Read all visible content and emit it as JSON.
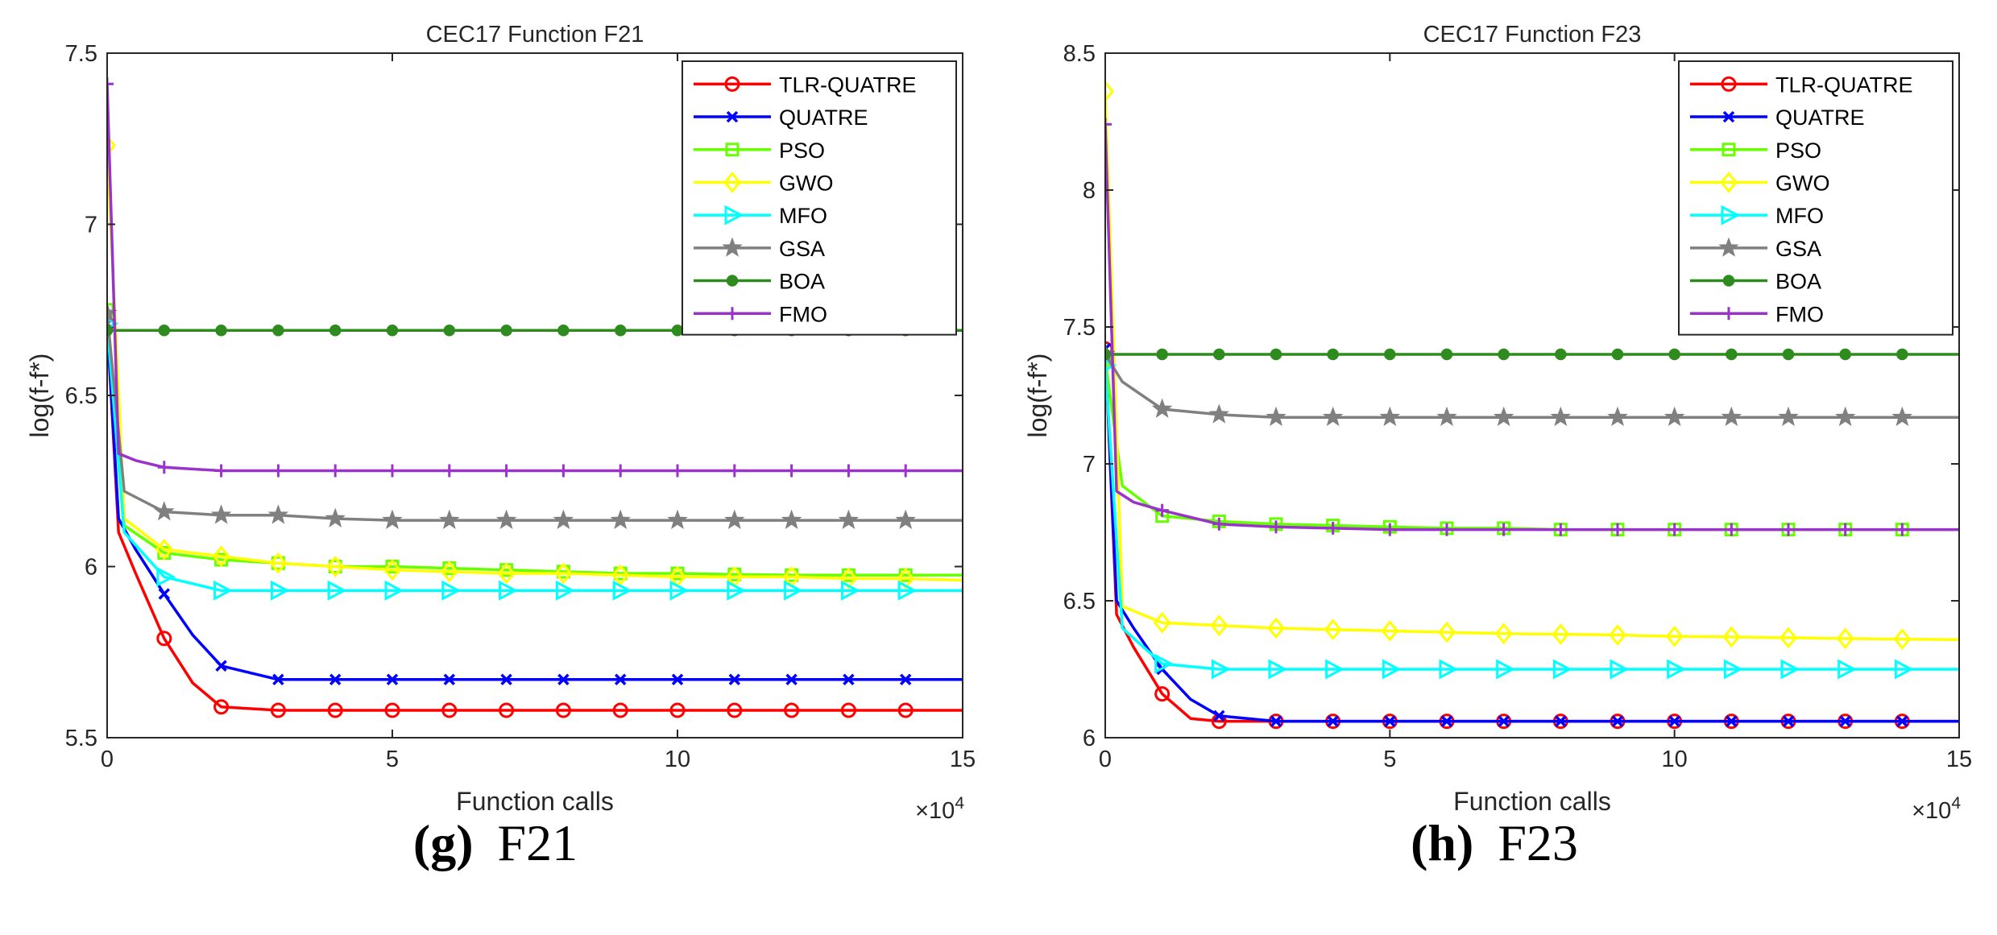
{
  "figures": [
    {
      "caption_letter": "(g)",
      "caption_text": "F21"
    },
    {
      "caption_letter": "(h)",
      "caption_text": "F23"
    }
  ],
  "chart_data": [
    {
      "type": "line",
      "title": "CEC17 Function F21",
      "xlabel": "Function calls",
      "ylabel": "log(f-f*)",
      "x_multiplier_label": "×10",
      "x_multiplier_exp": "4",
      "xlim": [
        0,
        15
      ],
      "ylim": [
        5.5,
        7.5
      ],
      "xticks": [
        0,
        5,
        10,
        15
      ],
      "xtick_labels": [
        "0",
        "5",
        "10",
        "15"
      ],
      "yticks": [
        5.5,
        6,
        6.5,
        7,
        7.5
      ],
      "ytick_labels": [
        "5.5",
        "6",
        "6.5",
        "7",
        "7.5"
      ],
      "legend_position": "top-right",
      "series": [
        {
          "name": "TLR-QUATRE",
          "color": "#ff0000",
          "marker": "circle",
          "x": [
            0,
            0.2,
            0.5,
            1,
            1.5,
            2,
            3,
            4,
            5,
            6,
            7,
            8,
            9,
            10,
            11,
            12,
            13,
            14,
            15
          ],
          "y": [
            6.71,
            6.1,
            5.98,
            5.79,
            5.66,
            5.59,
            5.58,
            5.58,
            5.58,
            5.58,
            5.58,
            5.58,
            5.58,
            5.58,
            5.58,
            5.58,
            5.58,
            5.58,
            5.58
          ]
        },
        {
          "name": "QUATRE",
          "color": "#0000ff",
          "marker": "x",
          "x": [
            0,
            0.2,
            0.5,
            1,
            1.5,
            2,
            3,
            4,
            5,
            6,
            7,
            8,
            9,
            10,
            11,
            12,
            13,
            14,
            15
          ],
          "y": [
            6.71,
            6.14,
            6.05,
            5.92,
            5.8,
            5.71,
            5.67,
            5.67,
            5.67,
            5.67,
            5.67,
            5.67,
            5.67,
            5.67,
            5.67,
            5.67,
            5.67,
            5.67,
            5.67
          ]
        },
        {
          "name": "PSO",
          "color": "#66ff00",
          "marker": "square",
          "x": [
            0,
            0.3,
            1,
            2,
            3,
            4,
            5,
            6,
            7,
            8,
            9,
            10,
            11,
            12,
            13,
            14,
            15
          ],
          "y": [
            6.75,
            6.12,
            6.04,
            6.02,
            6.01,
            6.0,
            6.0,
            5.995,
            5.99,
            5.985,
            5.98,
            5.98,
            5.977,
            5.975,
            5.975,
            5.975,
            5.975
          ]
        },
        {
          "name": "GWO",
          "color": "#ffff00",
          "marker": "diamond",
          "x": [
            0,
            0.3,
            1,
            2,
            3,
            4,
            5,
            6,
            7,
            8,
            9,
            10,
            11,
            12,
            13,
            14,
            15
          ],
          "y": [
            7.23,
            6.14,
            6.05,
            6.03,
            6.01,
            6.0,
            5.99,
            5.985,
            5.98,
            5.98,
            5.975,
            5.97,
            5.97,
            5.97,
            5.965,
            5.965,
            5.96
          ]
        },
        {
          "name": "MFO",
          "color": "#00ffff",
          "marker": "triangle-right",
          "x": [
            0,
            0.3,
            1,
            2,
            3,
            4,
            5,
            6,
            7,
            8,
            9,
            10,
            11,
            12,
            13,
            14,
            15
          ],
          "y": [
            6.71,
            6.1,
            5.97,
            5.93,
            5.93,
            5.93,
            5.93,
            5.93,
            5.93,
            5.93,
            5.93,
            5.93,
            5.93,
            5.93,
            5.93,
            5.93,
            5.93
          ]
        },
        {
          "name": "GSA",
          "color": "#808080",
          "marker": "star",
          "x": [
            0,
            0.3,
            1,
            2,
            3,
            4,
            5,
            6,
            7,
            8,
            9,
            10,
            11,
            12,
            13,
            14,
            15
          ],
          "y": [
            6.74,
            6.22,
            6.16,
            6.15,
            6.15,
            6.14,
            6.135,
            6.135,
            6.135,
            6.135,
            6.135,
            6.135,
            6.135,
            6.135,
            6.135,
            6.135,
            6.135
          ]
        },
        {
          "name": "BOA",
          "color": "#2e8b1e",
          "marker": "filled-circle",
          "x": [
            0,
            0.1,
            1,
            2,
            3,
            4,
            5,
            6,
            7,
            8,
            9,
            10,
            11,
            12,
            13,
            14,
            15
          ],
          "y": [
            6.69,
            6.69,
            6.69,
            6.69,
            6.69,
            6.69,
            6.69,
            6.69,
            6.69,
            6.69,
            6.69,
            6.69,
            6.69,
            6.69,
            6.69,
            6.69,
            6.69
          ]
        },
        {
          "name": "FMO",
          "color": "#9933cc",
          "marker": "plus",
          "x": [
            0,
            0.2,
            0.5,
            1,
            2,
            3,
            4,
            5,
            6,
            7,
            8,
            9,
            10,
            11,
            12,
            13,
            14,
            15
          ],
          "y": [
            7.41,
            6.33,
            6.31,
            6.29,
            6.28,
            6.28,
            6.28,
            6.28,
            6.28,
            6.28,
            6.28,
            6.28,
            6.28,
            6.28,
            6.28,
            6.28,
            6.28,
            6.28
          ]
        }
      ]
    },
    {
      "type": "line",
      "title": "CEC17 Function F23",
      "xlabel": "Function calls",
      "ylabel": "log(f-f*)",
      "x_multiplier_label": "×10",
      "x_multiplier_exp": "4",
      "xlim": [
        0,
        15
      ],
      "ylim": [
        6,
        8.5
      ],
      "xticks": [
        0,
        5,
        10,
        15
      ],
      "xtick_labels": [
        "0",
        "5",
        "10",
        "15"
      ],
      "yticks": [
        6,
        6.5,
        7,
        7.5,
        8,
        8.5
      ],
      "ytick_labels": [
        "6",
        "6.5",
        "7",
        "7.5",
        "8",
        "8.5"
      ],
      "legend_position": "top-right",
      "series": [
        {
          "name": "TLR-QUATRE",
          "color": "#ff0000",
          "marker": "circle",
          "x": [
            0,
            0.2,
            0.5,
            1,
            1.5,
            2,
            3,
            4,
            5,
            6,
            7,
            8,
            9,
            10,
            11,
            12,
            13,
            14,
            15
          ],
          "y": [
            7.42,
            6.45,
            6.33,
            6.16,
            6.07,
            6.06,
            6.06,
            6.06,
            6.06,
            6.06,
            6.06,
            6.06,
            6.06,
            6.06,
            6.06,
            6.06,
            6.06,
            6.06,
            6.06
          ]
        },
        {
          "name": "QUATRE",
          "color": "#0000ff",
          "marker": "x",
          "x": [
            0,
            0.2,
            0.5,
            1,
            1.5,
            2,
            3,
            4,
            5,
            6,
            7,
            8,
            9,
            10,
            11,
            12,
            13,
            14,
            15
          ],
          "y": [
            7.42,
            6.5,
            6.4,
            6.25,
            6.14,
            6.08,
            6.06,
            6.06,
            6.06,
            6.06,
            6.06,
            6.06,
            6.06,
            6.06,
            6.06,
            6.06,
            6.06,
            6.06,
            6.06
          ]
        },
        {
          "name": "PSO",
          "color": "#66ff00",
          "marker": "square",
          "x": [
            0,
            0.3,
            1,
            2,
            3,
            4,
            5,
            6,
            7,
            8,
            9,
            10,
            11,
            12,
            13,
            14,
            15
          ],
          "y": [
            7.38,
            6.92,
            6.81,
            6.79,
            6.78,
            6.775,
            6.77,
            6.765,
            6.765,
            6.76,
            6.76,
            6.76,
            6.76,
            6.76,
            6.76,
            6.76,
            6.76
          ]
        },
        {
          "name": "GWO",
          "color": "#ffff00",
          "marker": "diamond",
          "x": [
            0,
            0.3,
            1,
            2,
            3,
            4,
            5,
            6,
            7,
            8,
            9,
            10,
            11,
            12,
            13,
            14,
            15
          ],
          "y": [
            8.36,
            6.48,
            6.42,
            6.41,
            6.4,
            6.395,
            6.39,
            6.385,
            6.38,
            6.378,
            6.375,
            6.37,
            6.368,
            6.365,
            6.362,
            6.36,
            6.358
          ]
        },
        {
          "name": "MFO",
          "color": "#00ffff",
          "marker": "triangle-right",
          "x": [
            0,
            0.3,
            1,
            2,
            3,
            4,
            5,
            6,
            7,
            8,
            9,
            10,
            11,
            12,
            13,
            14,
            15
          ],
          "y": [
            7.36,
            6.4,
            6.27,
            6.25,
            6.25,
            6.25,
            6.25,
            6.25,
            6.25,
            6.25,
            6.25,
            6.25,
            6.25,
            6.25,
            6.25,
            6.25,
            6.25
          ]
        },
        {
          "name": "GSA",
          "color": "#808080",
          "marker": "star",
          "x": [
            0,
            0.3,
            1,
            2,
            3,
            4,
            5,
            6,
            7,
            8,
            9,
            10,
            11,
            12,
            13,
            14,
            15
          ],
          "y": [
            7.4,
            7.3,
            7.2,
            7.18,
            7.17,
            7.17,
            7.17,
            7.17,
            7.17,
            7.17,
            7.17,
            7.17,
            7.17,
            7.17,
            7.17,
            7.17,
            7.17
          ]
        },
        {
          "name": "BOA",
          "color": "#2e8b1e",
          "marker": "filled-circle",
          "x": [
            0,
            0.1,
            1,
            2,
            3,
            4,
            5,
            6,
            7,
            8,
            9,
            10,
            11,
            12,
            13,
            14,
            15
          ],
          "y": [
            7.4,
            7.4,
            7.4,
            7.4,
            7.4,
            7.4,
            7.4,
            7.4,
            7.4,
            7.4,
            7.4,
            7.4,
            7.4,
            7.4,
            7.4,
            7.4,
            7.4
          ]
        },
        {
          "name": "FMO",
          "color": "#9933cc",
          "marker": "plus",
          "x": [
            0,
            0.2,
            0.5,
            1,
            2,
            3,
            4,
            5,
            6,
            7,
            8,
            9,
            10,
            11,
            12,
            13,
            14,
            15
          ],
          "y": [
            8.24,
            6.9,
            6.86,
            6.83,
            6.78,
            6.77,
            6.765,
            6.76,
            6.76,
            6.76,
            6.76,
            6.76,
            6.76,
            6.76,
            6.76,
            6.76,
            6.76,
            6.76
          ]
        }
      ]
    }
  ]
}
